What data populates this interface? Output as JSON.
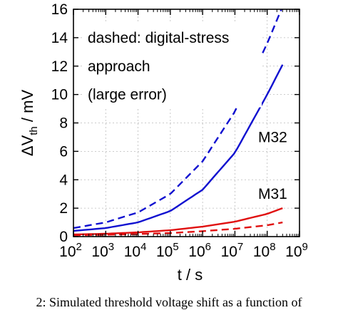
{
  "chart_data": {
    "type": "line",
    "xscale": "log",
    "xlim": [
      100,
      1000000000
    ],
    "ylim": [
      0,
      16
    ],
    "grid": true,
    "xlabel": "t / s",
    "ylabel": "ΔV_th / mV",
    "ylabel_main": "ΔV",
    "ylabel_sub": "th",
    "ylabel_unit": " / mV",
    "xticks": [
      100,
      1000,
      10000,
      100000,
      1000000,
      10000000,
      100000000,
      1000000000
    ],
    "xtick_exponents": [
      "2",
      "3",
      "4",
      "5",
      "6",
      "7",
      "8",
      "9"
    ],
    "yticks": [
      0,
      2,
      4,
      6,
      8,
      10,
      12,
      14,
      16
    ],
    "ytick_labels": [
      "0",
      "2",
      "4",
      "6",
      "8",
      "10",
      "12",
      "14",
      "16"
    ],
    "annotation_lines": [
      "dashed: digital-stress",
      "approach",
      "(large error)"
    ],
    "series": [
      {
        "name": "M32",
        "color": "#1010d0",
        "dash": false,
        "x": [
          100,
          1000,
          10000,
          100000,
          1000000,
          10000000,
          100000000,
          300000000
        ],
        "y": [
          0.4,
          0.6,
          1.0,
          1.8,
          3.3,
          5.9,
          10.0,
          12.1
        ]
      },
      {
        "color": "#1010d0",
        "dash": true,
        "x": [
          100,
          1000,
          10000,
          100000,
          1000000,
          10000000,
          100000000,
          300000000
        ],
        "y": [
          0.6,
          1.0,
          1.7,
          3.0,
          5.3,
          8.8,
          13.6,
          16.2
        ]
      },
      {
        "name": "M31",
        "color": "#e01010",
        "dash": false,
        "x": [
          100,
          1000,
          10000,
          100000,
          1000000,
          10000000,
          100000000,
          300000000
        ],
        "y": [
          0.15,
          0.2,
          0.3,
          0.45,
          0.7,
          1.05,
          1.6,
          2.0
        ]
      },
      {
        "color": "#e01010",
        "dash": true,
        "x": [
          100,
          1000,
          10000,
          100000,
          1000000,
          10000000,
          100000000,
          300000000
        ],
        "y": [
          0.1,
          0.13,
          0.18,
          0.25,
          0.38,
          0.55,
          0.8,
          1.0
        ]
      }
    ],
    "series_label_positions": [
      "right-middle",
      "right-lower"
    ]
  },
  "caption": "2: Simulated threshold voltage shift as a function of"
}
